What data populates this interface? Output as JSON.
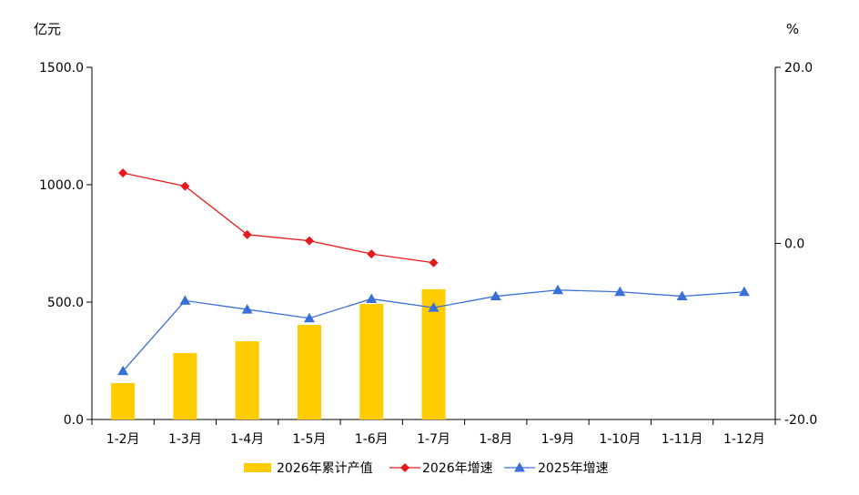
{
  "chart_data": {
    "type": "bar",
    "left_unit": "亿元",
    "right_unit": "%",
    "categories": [
      "1-2月",
      "1-3月",
      "1-4月",
      "1-5月",
      "1-6月",
      "1-7月",
      "1-8月",
      "1-9月",
      "1-10月",
      "1-11月",
      "1-12月"
    ],
    "y_left": {
      "min": 0,
      "max": 1500,
      "ticks": [
        "0.0",
        "500.0",
        "1000.0",
        "1500.0"
      ]
    },
    "y_right": {
      "min": -20,
      "max": 20,
      "ticks": [
        "-20.0",
        "0.0",
        "20.0"
      ]
    },
    "series": [
      {
        "name": "2026年累计产值",
        "type": "bar",
        "axis": "left",
        "color": "#FFCC00",
        "values": [
          155,
          283,
          333,
          403,
          492,
          555,
          null,
          null,
          null,
          null,
          null
        ]
      },
      {
        "name": "2026年增速",
        "type": "line",
        "axis": "right",
        "color": "#E8191B",
        "marker": "diamond",
        "values": [
          8.0,
          6.5,
          1.0,
          0.3,
          -1.2,
          -2.2,
          null,
          null,
          null,
          null,
          null
        ]
      },
      {
        "name": "2025年增速",
        "type": "line",
        "axis": "right",
        "color": "#3B6FD8",
        "marker": "triangle",
        "values": [
          -14.5,
          -6.5,
          -7.5,
          -8.5,
          -6.3,
          -7.3,
          -6.0,
          -5.3,
          -5.5,
          -6.0,
          -5.5
        ]
      }
    ],
    "legend_position": "bottom",
    "grid": false
  }
}
